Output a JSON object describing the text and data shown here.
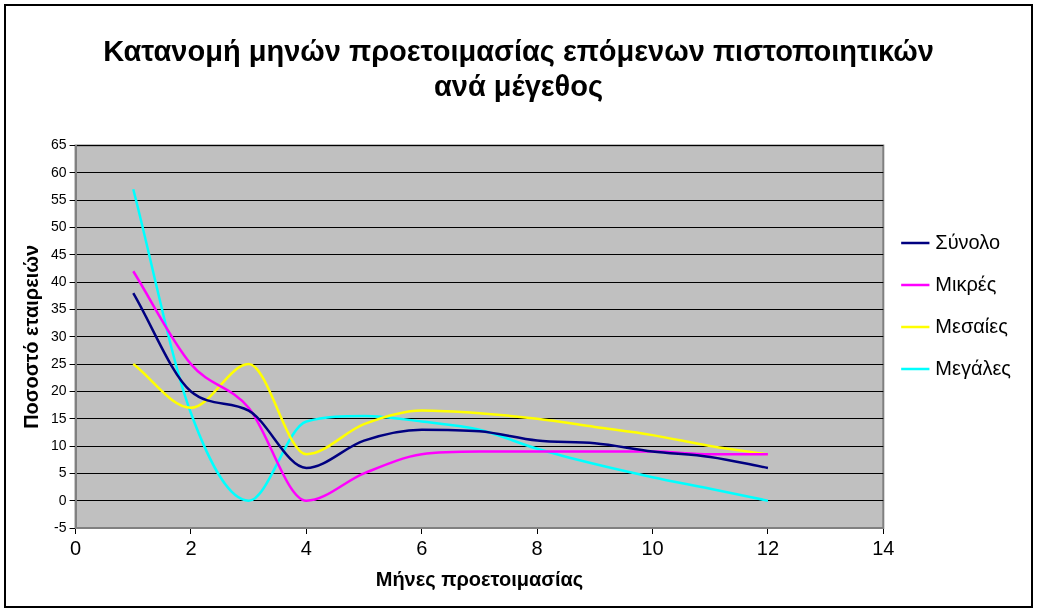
{
  "chart_data": {
    "type": "line",
    "title": "Κατανομή μηνών προετοιμασίας επόμενων πιστοποιητικών ανά μέγεθος",
    "xlabel": "Μήνες προετοιμασίας",
    "ylabel": "Ποσοστό εταιρειών",
    "x": [
      1,
      2,
      3,
      4,
      5,
      6,
      7,
      8,
      9,
      10,
      11,
      12
    ],
    "series": [
      {
        "name": "Σύνολο",
        "color": "#000080",
        "values": [
          38,
          20,
          16.5,
          6,
          11,
          13,
          12.7,
          11,
          10.5,
          9,
          8,
          6
        ]
      },
      {
        "name": "Μικρές",
        "color": "#ff00ff",
        "values": [
          42,
          25,
          17,
          0,
          5,
          8.5,
          9,
          9,
          9,
          9,
          8.5,
          8.5
        ]
      },
      {
        "name": "Μεσαίες",
        "color": "#ffff00",
        "values": [
          25,
          17,
          25,
          8.5,
          14,
          16.5,
          16,
          15,
          13.5,
          12,
          10,
          8.5
        ]
      },
      {
        "name": "Μεγάλες",
        "color": "#00ffff",
        "values": [
          57,
          16,
          0,
          14.5,
          15.5,
          14.5,
          13,
          9.5,
          6.7,
          4.3,
          2.2,
          0
        ]
      }
    ],
    "xlim": [
      0,
      14
    ],
    "xticks": [
      0,
      2,
      4,
      6,
      8,
      10,
      12,
      14
    ],
    "ylim": [
      -5,
      65
    ],
    "yticks": [
      -5,
      0,
      5,
      10,
      15,
      20,
      25,
      30,
      35,
      40,
      45,
      50,
      55,
      60,
      65
    ],
    "grid": "y",
    "legend": "right",
    "marker": "none",
    "line_style": "solid"
  }
}
